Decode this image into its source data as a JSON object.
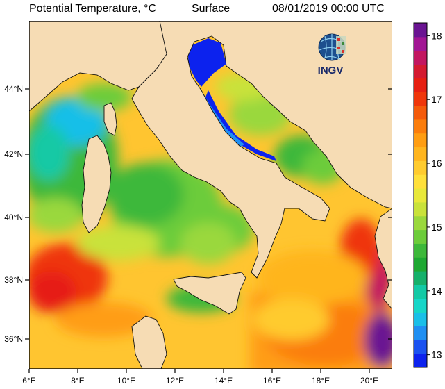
{
  "header": {
    "variable": "Potential Temperature, °C",
    "depth": "Surface",
    "datetime": "08/01/2019 00:00 UTC"
  },
  "logo": {
    "text": "INGV"
  },
  "axes": {
    "lon_labels": [
      "6°E",
      "8°E",
      "10°E",
      "12°E",
      "14°E",
      "16°E",
      "18°E",
      "20°E"
    ],
    "lat_labels": [
      "36°N",
      "38°N",
      "40°N",
      "42°N",
      "44°N"
    ]
  },
  "colorbar": {
    "min": 12.8,
    "max": 18.2,
    "ticks": [
      "13",
      "14",
      "15",
      "16",
      "17",
      "18"
    ],
    "colors": [
      "#0c22ee",
      "#1a52f0",
      "#1f8ff2",
      "#19bfe8",
      "#16d6c8",
      "#12c9a5",
      "#15b06a",
      "#1ea832",
      "#3db83a",
      "#6ccc3a",
      "#9ad83c",
      "#c9e23a",
      "#e8e83a",
      "#ffe03a",
      "#ffcb2e",
      "#ffb51e",
      "#ff9d12",
      "#fb7d0c",
      "#f45a0a",
      "#ef360a",
      "#e61f12",
      "#d41a30",
      "#c21660",
      "#a21694",
      "#6a1492"
    ]
  },
  "map_data": {
    "type": "filled-contour map",
    "variable": "sea surface potential temperature",
    "units": "°C",
    "extent": {
      "lon": [
        6,
        21
      ],
      "lat": [
        35,
        45.5
      ]
    },
    "regions": [
      {
        "area": "northern Adriatic",
        "temp_c": 13.0
      },
      {
        "area": "central Adriatic",
        "temp_c": 15.5
      },
      {
        "area": "Ligurian Sea",
        "temp_c": 14.2
      },
      {
        "area": "Tyrrhenian Sea",
        "temp_c": 15.0
      },
      {
        "area": "Sardinia Channel",
        "temp_c": 17.0
      },
      {
        "area": "Ionian Sea",
        "temp_c": 16.5
      },
      {
        "area": "southern Ionian",
        "temp_c": 17.5
      },
      {
        "area": "eastern Ionian near Greece",
        "temp_c": 18.0
      }
    ]
  }
}
